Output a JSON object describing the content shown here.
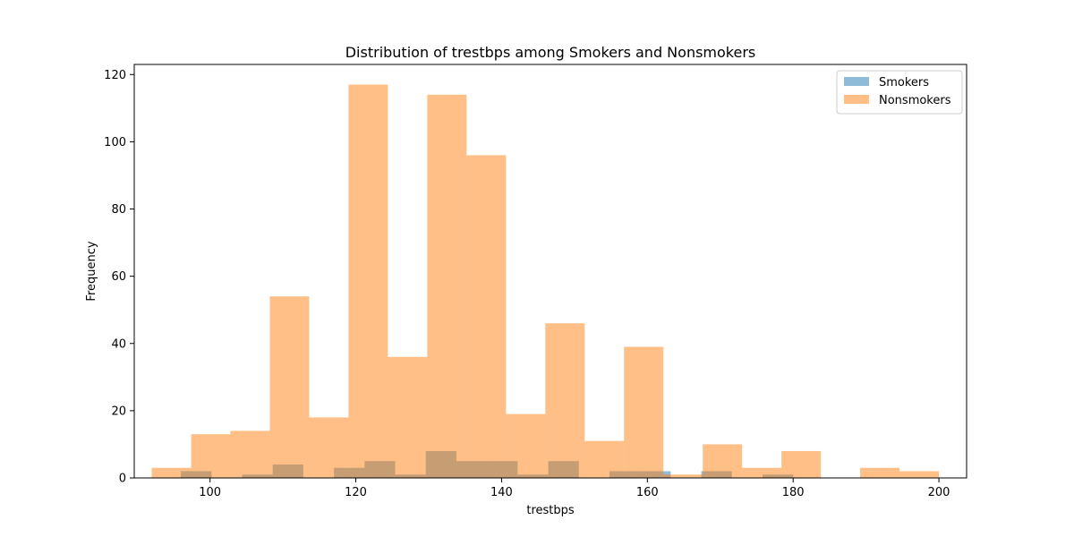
{
  "chart_data": {
    "type": "bar",
    "title": "Distribution of trestbps among Smokers and Nonsmokers",
    "xlabel": "trestbps",
    "ylabel": "Frequency",
    "xlim": [
      89.6,
      203.8
    ],
    "ylim": [
      0,
      123
    ],
    "xticks": [
      100,
      120,
      140,
      160,
      180,
      200
    ],
    "yticks": [
      0,
      20,
      40,
      60,
      80,
      100,
      120
    ],
    "legend_position": "top-right",
    "series": [
      {
        "name": "Smokers",
        "color": "#1f77b4",
        "opacity": 0.5,
        "bins": [
          {
            "x0": 96.0,
            "x1": 100.2,
            "value": 2
          },
          {
            "x0": 100.2,
            "x1": 104.4,
            "value": 0
          },
          {
            "x0": 104.4,
            "x1": 108.6,
            "value": 1
          },
          {
            "x0": 108.6,
            "x1": 112.8,
            "value": 4
          },
          {
            "x0": 112.8,
            "x1": 117.0,
            "value": 0
          },
          {
            "x0": 117.0,
            "x1": 121.2,
            "value": 3
          },
          {
            "x0": 121.2,
            "x1": 125.4,
            "value": 5
          },
          {
            "x0": 125.4,
            "x1": 129.6,
            "value": 1
          },
          {
            "x0": 129.6,
            "x1": 133.8,
            "value": 8
          },
          {
            "x0": 133.8,
            "x1": 138.0,
            "value": 5
          },
          {
            "x0": 138.0,
            "x1": 142.2,
            "value": 5
          },
          {
            "x0": 142.2,
            "x1": 146.4,
            "value": 1
          },
          {
            "x0": 146.4,
            "x1": 150.6,
            "value": 5
          },
          {
            "x0": 150.6,
            "x1": 154.8,
            "value": 0
          },
          {
            "x0": 154.8,
            "x1": 159.0,
            "value": 2
          },
          {
            "x0": 159.0,
            "x1": 163.2,
            "value": 2
          },
          {
            "x0": 163.2,
            "x1": 167.4,
            "value": 0
          },
          {
            "x0": 167.4,
            "x1": 171.6,
            "value": 2
          },
          {
            "x0": 171.6,
            "x1": 175.8,
            "value": 0
          },
          {
            "x0": 175.8,
            "x1": 180.0,
            "value": 1
          }
        ]
      },
      {
        "name": "Nonsmokers",
        "color": "#ff7f0e",
        "opacity": 0.5,
        "bins": [
          {
            "x0": 92.0,
            "x1": 97.4,
            "value": 3
          },
          {
            "x0": 97.4,
            "x1": 102.8,
            "value": 13
          },
          {
            "x0": 102.8,
            "x1": 108.2,
            "value": 14
          },
          {
            "x0": 108.2,
            "x1": 113.6,
            "value": 54
          },
          {
            "x0": 113.6,
            "x1": 119.0,
            "value": 18
          },
          {
            "x0": 119.0,
            "x1": 124.4,
            "value": 117
          },
          {
            "x0": 124.4,
            "x1": 129.8,
            "value": 36
          },
          {
            "x0": 129.8,
            "x1": 135.2,
            "value": 114
          },
          {
            "x0": 135.2,
            "x1": 140.6,
            "value": 96
          },
          {
            "x0": 140.6,
            "x1": 146.0,
            "value": 19
          },
          {
            "x0": 146.0,
            "x1": 151.4,
            "value": 46
          },
          {
            "x0": 151.4,
            "x1": 156.8,
            "value": 11
          },
          {
            "x0": 156.8,
            "x1": 162.2,
            "value": 39
          },
          {
            "x0": 162.2,
            "x1": 167.6,
            "value": 1
          },
          {
            "x0": 167.6,
            "x1": 173.0,
            "value": 10
          },
          {
            "x0": 173.0,
            "x1": 178.4,
            "value": 3
          },
          {
            "x0": 178.4,
            "x1": 183.8,
            "value": 8
          },
          {
            "x0": 183.8,
            "x1": 189.2,
            "value": 0
          },
          {
            "x0": 189.2,
            "x1": 194.6,
            "value": 3
          },
          {
            "x0": 194.6,
            "x1": 200.0,
            "value": 2
          }
        ]
      }
    ]
  }
}
